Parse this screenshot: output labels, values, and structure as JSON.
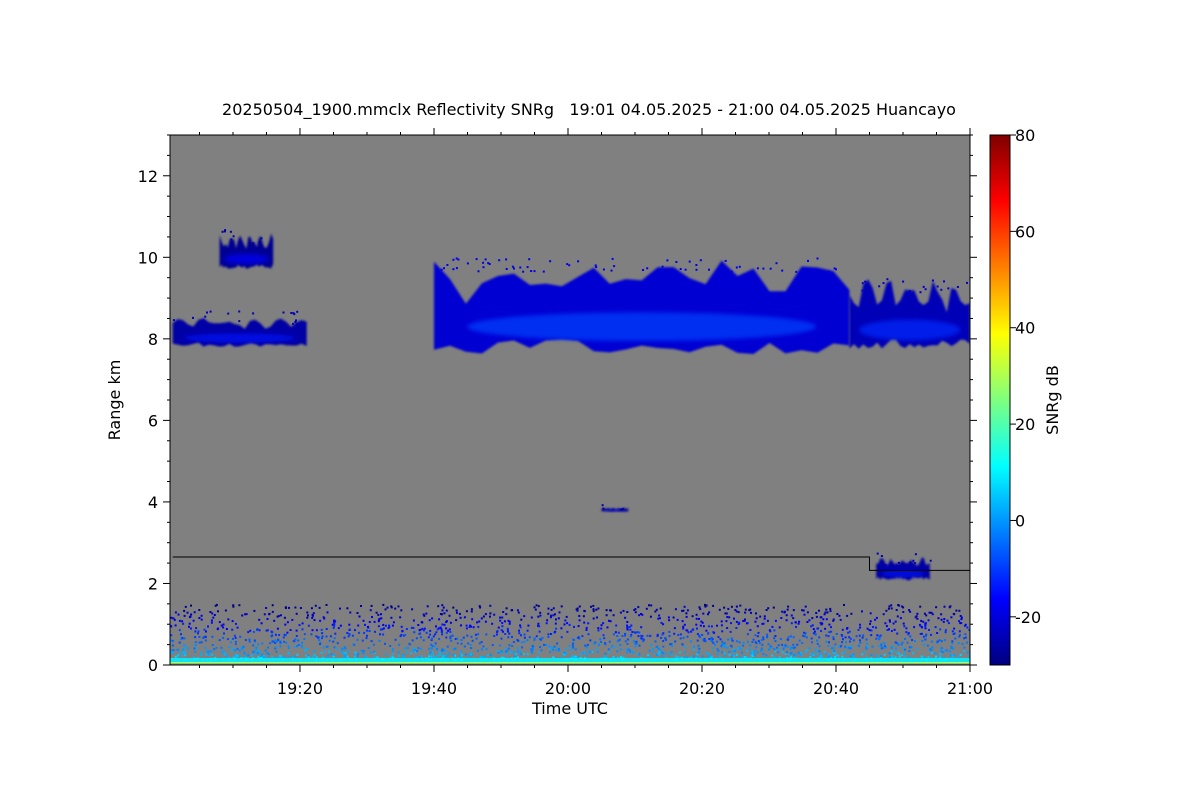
{
  "chart_data": {
    "type": "heatmap",
    "title": "20250504_1900.mmclx Reflectivity SNRg   19:01 04.05.2025 - 21:00 04.05.2025 Huancayo",
    "xlabel": "Time UTC",
    "ylabel": "Range km",
    "xlim": [
      "19:01",
      "21:00"
    ],
    "ylim": [
      0,
      13
    ],
    "x_ticks": [
      "19:20",
      "19:40",
      "20:00",
      "20:20",
      "20:40",
      "21:00"
    ],
    "y_ticks": [
      0,
      2,
      4,
      6,
      8,
      10,
      12
    ],
    "background_color": "#808080",
    "colorbar": {
      "label": "SNRg dB",
      "range": [
        -30,
        80
      ],
      "ticks": [
        -20,
        0,
        20,
        40,
        60,
        80
      ],
      "colormap": "jet"
    },
    "threshold_line": {
      "points": [
        [
          "19:01",
          2.65
        ],
        [
          "20:45",
          2.65
        ],
        [
          "20:45",
          2.32
        ],
        [
          "21:00",
          2.32
        ]
      ],
      "color": "#000000"
    },
    "cloud_layers": [
      {
        "time_start": "19:01",
        "time_end": "19:21",
        "base_km": 7.7,
        "top_km": 8.5,
        "snr_db": -20
      },
      {
        "time_start": "19:08",
        "time_end": "19:16",
        "base_km": 9.6,
        "top_km": 10.5,
        "snr_db": -22
      },
      {
        "time_start": "19:40",
        "time_end": "20:42",
        "base_km": 7.3,
        "top_km": 9.8,
        "snr_db": -15
      },
      {
        "time_start": "20:42",
        "time_end": "21:00",
        "base_km": 7.5,
        "top_km": 9.3,
        "snr_db": -18
      },
      {
        "time_start": "20:46",
        "time_end": "20:54",
        "base_km": 2.0,
        "top_km": 2.6,
        "snr_db": -20
      },
      {
        "time_start": "20:05",
        "time_end": "20:09",
        "base_km": 3.75,
        "top_km": 3.85,
        "snr_db": -22
      }
    ],
    "surface_clutter": {
      "base_km": 0,
      "top_km": 1.5,
      "peak_snr_db": 10
    }
  }
}
